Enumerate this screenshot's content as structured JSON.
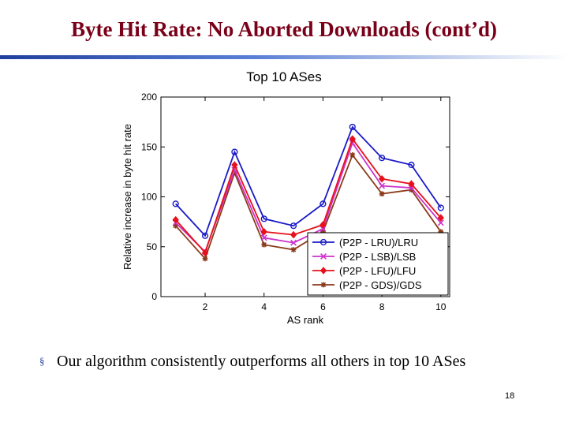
{
  "slide": {
    "title": "Byte Hit Rate: No Aborted Downloads (cont’d)",
    "bullet_text": "Our algorithm consistently outperforms all others in top 10 ASes",
    "page_number": "18"
  },
  "chart_data": {
    "type": "line",
    "title": "Top 10 ASes",
    "xlabel": "AS rank",
    "ylabel": "Relative increase in byte hit rate",
    "xlim": [
      0.5,
      10.3
    ],
    "ylim": [
      0,
      200
    ],
    "x_ticks": [
      2,
      4,
      6,
      8,
      10
    ],
    "y_ticks": [
      0,
      50,
      100,
      150,
      200
    ],
    "x": [
      1,
      2,
      3,
      4,
      5,
      6,
      7,
      8,
      9,
      10
    ],
    "legend_position": "bottom-right",
    "series": [
      {
        "name": "(P2P - LRU)/LRU",
        "marker": "circle",
        "color": "#1a1ac8",
        "values": [
          93,
          61,
          145,
          78,
          71,
          93,
          170,
          139,
          132,
          89
        ]
      },
      {
        "name": "(P2P - LSB)/LSB",
        "marker": "x",
        "color": "#cc33cc",
        "values": [
          74,
          45,
          127,
          59,
          54,
          68,
          154,
          111,
          109,
          74
        ]
      },
      {
        "name": "(P2P - LFU)/LFU",
        "marker": "diamond",
        "color": "#e8101a",
        "values": [
          77,
          44,
          132,
          65,
          62,
          72,
          158,
          118,
          113,
          79
        ]
      },
      {
        "name": "(P2P - GDS)/GDS",
        "marker": "star",
        "color": "#8b3a1a",
        "values": [
          71,
          38,
          124,
          52,
          47,
          65,
          142,
          103,
          107,
          65
        ]
      }
    ]
  }
}
